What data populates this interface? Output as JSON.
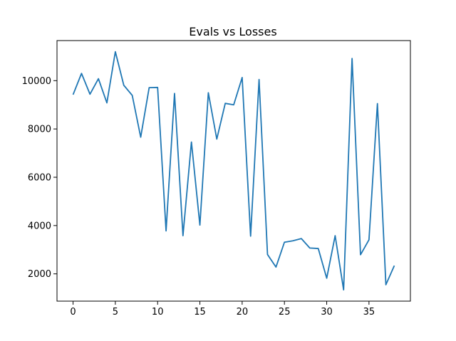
{
  "chart_data": {
    "type": "line",
    "title": "Evals vs Losses",
    "xlabel": "",
    "ylabel": "",
    "xlim": [
      -1.9,
      39.9
    ],
    "ylim": [
      870,
      11660
    ],
    "x_ticks": [
      0,
      5,
      10,
      15,
      20,
      25,
      30,
      35
    ],
    "y_ticks": [
      2000,
      4000,
      6000,
      8000,
      10000
    ],
    "grid": false,
    "line_color": "#1f77b4",
    "series": [
      {
        "x": [
          0,
          1,
          2,
          3,
          4,
          5,
          6,
          7,
          8,
          9,
          10,
          11,
          12,
          13,
          14,
          15,
          16,
          17,
          18,
          19,
          20,
          21,
          22,
          23,
          24,
          25,
          26,
          27,
          28,
          29,
          30,
          31,
          32,
          33,
          34,
          35,
          36,
          37,
          38
        ],
        "values": [
          9420,
          10300,
          9440,
          10080,
          9080,
          11200,
          9810,
          9390,
          7660,
          9710,
          9720,
          3780,
          9470,
          3580,
          7460,
          4020,
          9500,
          7580,
          9060,
          9000,
          10130,
          3560,
          10050,
          2800,
          2280,
          3310,
          3370,
          3460,
          3070,
          3050,
          1820,
          3580,
          1340,
          10920,
          2790,
          3410,
          9050,
          1550,
          2340
        ]
      }
    ]
  }
}
